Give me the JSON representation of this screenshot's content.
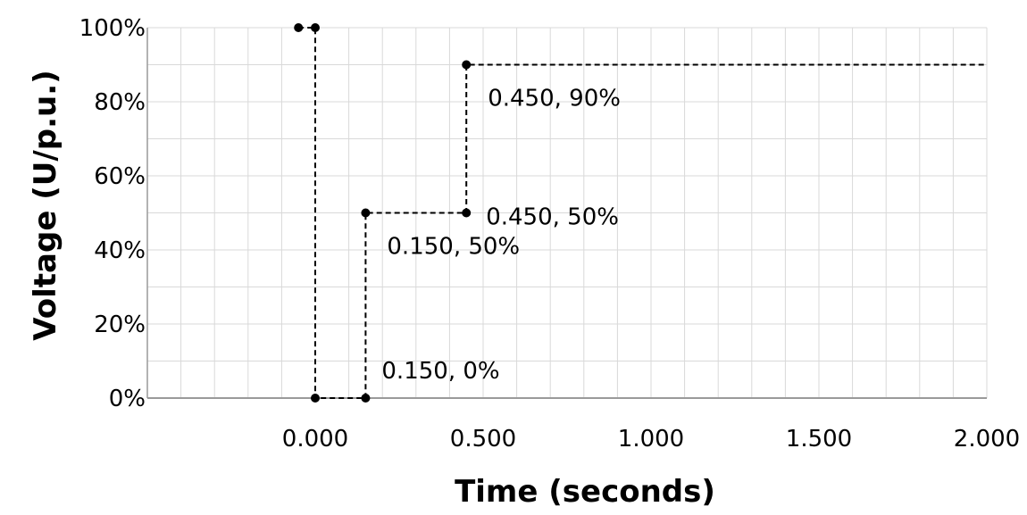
{
  "chart_data": {
    "type": "line",
    "title": "",
    "xlabel": "Time (seconds)",
    "ylabel": "Voltage (U/p.u.)",
    "xlim": [
      -0.5,
      2.0
    ],
    "ylim": [
      0,
      100
    ],
    "grid": true,
    "x_minor_step": 0.1,
    "y_minor_step": 10,
    "x_ticks": [
      {
        "value": 0.0,
        "label": "0.000"
      },
      {
        "value": 0.5,
        "label": "0.500"
      },
      {
        "value": 1.0,
        "label": "1.000"
      },
      {
        "value": 1.5,
        "label": "1.500"
      },
      {
        "value": 2.0,
        "label": "2.000"
      }
    ],
    "y_ticks": [
      {
        "value": 0,
        "label": "0%"
      },
      {
        "value": 20,
        "label": "20%"
      },
      {
        "value": 40,
        "label": "40%"
      },
      {
        "value": 60,
        "label": "60%"
      },
      {
        "value": 80,
        "label": "80%"
      },
      {
        "value": 100,
        "label": "100%"
      }
    ],
    "series": [
      {
        "line_style": "dashed",
        "color": "#000000",
        "points": [
          {
            "x": -0.05,
            "y": 100,
            "marker": true
          },
          {
            "x": 0.0,
            "y": 100,
            "marker": true
          },
          {
            "x": 0.0,
            "y": 0,
            "marker": true
          },
          {
            "x": 0.15,
            "y": 0,
            "marker": true
          },
          {
            "x": 0.15,
            "y": 50,
            "marker": true
          },
          {
            "x": 0.45,
            "y": 50,
            "marker": true
          },
          {
            "x": 0.45,
            "y": 90,
            "marker": true
          },
          {
            "x": 2.0,
            "y": 90,
            "marker": false
          }
        ]
      }
    ],
    "annotations": [
      {
        "text": "0.450, 90%",
        "x": 0.45,
        "y": 90,
        "anchor": "below-right"
      },
      {
        "text": "0.450, 50%",
        "x": 0.45,
        "y": 50,
        "anchor": "right"
      },
      {
        "text": "0.150, 50%",
        "x": 0.15,
        "y": 50,
        "anchor": "below-right"
      },
      {
        "text": "0.150, 0%",
        "x": 0.15,
        "y": 0,
        "anchor": "above-right"
      }
    ]
  }
}
